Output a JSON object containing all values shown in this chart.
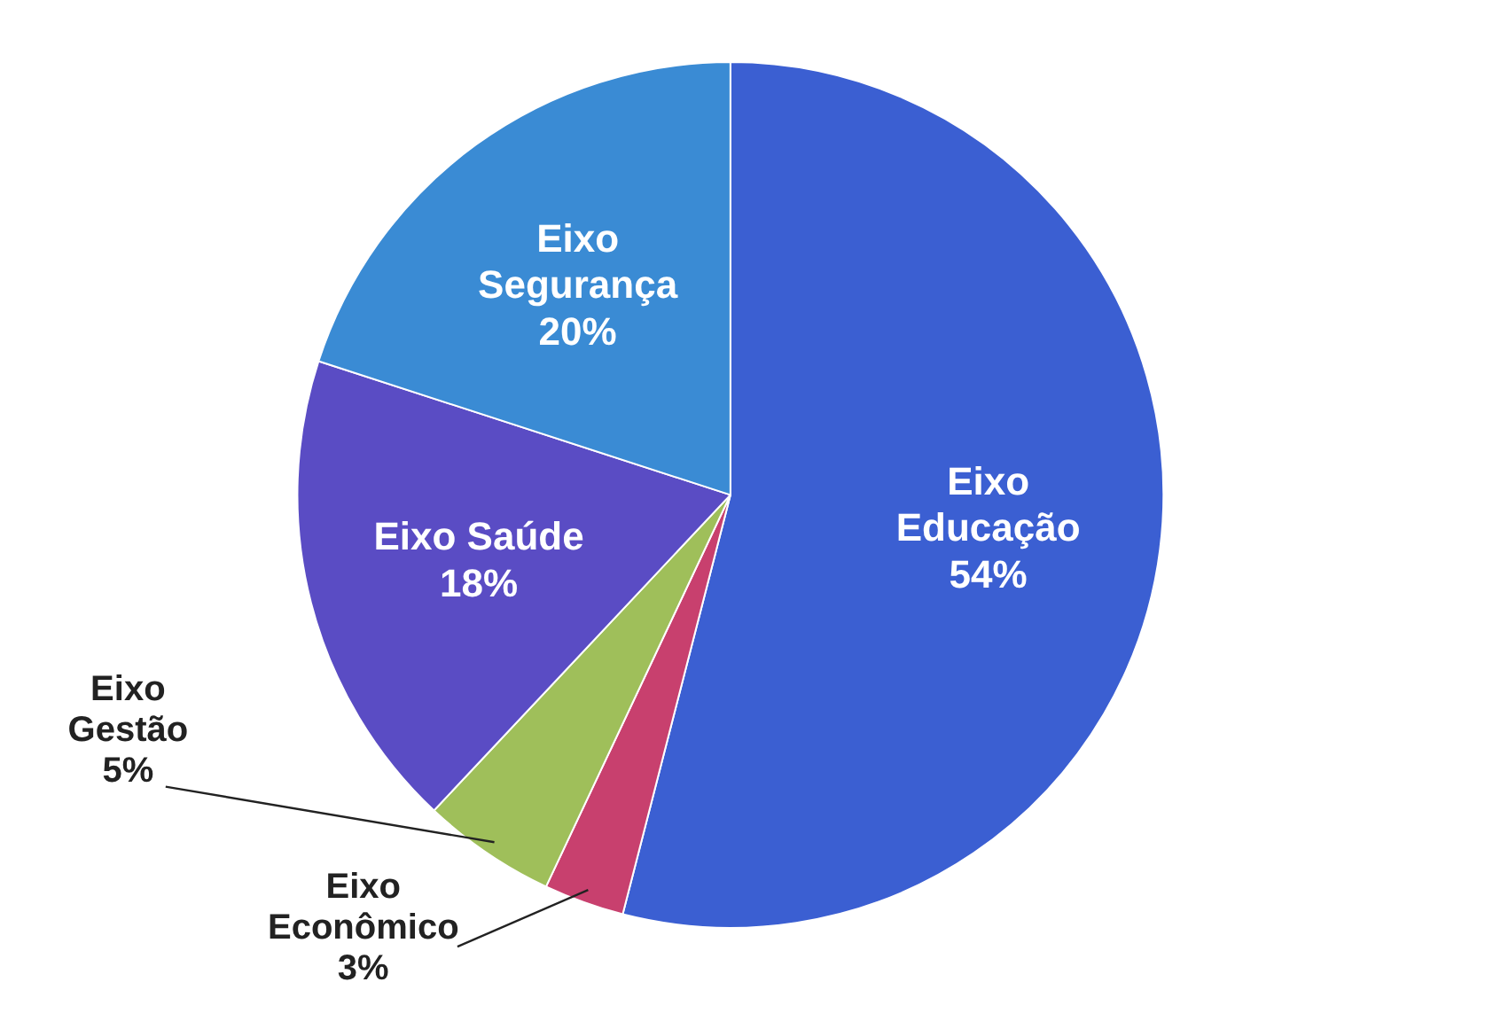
{
  "chart_data": {
    "type": "pie",
    "categories": [
      "Eixo Educação",
      "Eixo Econômico",
      "Eixo Gestão",
      "Eixo Saúde",
      "Eixo Segurança"
    ],
    "values": [
      54,
      3,
      5,
      18,
      20
    ],
    "colors": [
      "#3b5fd2",
      "#c8406e",
      "#9fbf5a",
      "#5a4cc4",
      "#3a8bd4"
    ],
    "value_labels": [
      "54%",
      "3%",
      "5%",
      "18%",
      "20%"
    ]
  }
}
